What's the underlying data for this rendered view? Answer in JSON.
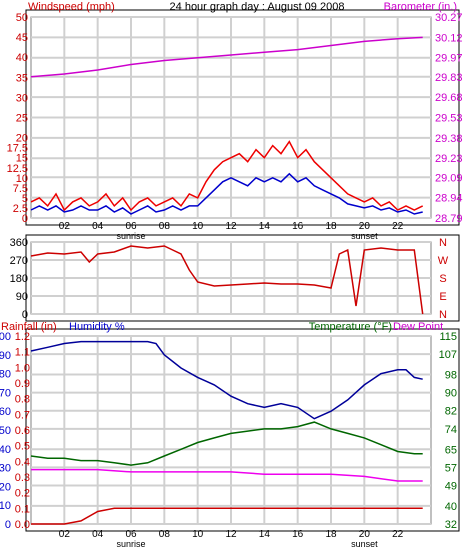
{
  "chart_data": [
    {
      "type": "line",
      "title": "24 hour graph day : August 09 2008",
      "left_axis": {
        "label": "Windspeed (mph)",
        "ticks": [
          "0",
          "2.5",
          "5",
          "7.5",
          "10",
          "12.5",
          "15",
          "17.5",
          "20",
          "25",
          "30",
          "35",
          "40",
          "45",
          "50"
        ],
        "ylim": [
          0,
          50
        ],
        "color": "#cc0000"
      },
      "right_axis": {
        "label": "Barometer (in.)",
        "ticks": [
          "28.79",
          "28.94",
          "29.09",
          "29.23",
          "29.38",
          "29.53",
          "29.68",
          "29.83",
          "29.97",
          "30.12",
          "30.27"
        ],
        "ylim": [
          28.79,
          30.27
        ],
        "color": "#cc00cc"
      },
      "x_ticks": [
        "02",
        "04",
        "06",
        "08",
        "10",
        "12",
        "14",
        "16",
        "18",
        "20",
        "22"
      ],
      "x_annotations": [
        "sunrise",
        "sunset"
      ],
      "xlim": [
        0,
        24
      ],
      "series": [
        {
          "role": "gust",
          "color": "#ee0000",
          "x": [
            0,
            0.5,
            1,
            1.5,
            2,
            2.5,
            3,
            3.5,
            4,
            4.5,
            5,
            5.5,
            6,
            6.5,
            7,
            7.5,
            8,
            8.5,
            9,
            9.5,
            10,
            10.5,
            11,
            11.5,
            12,
            12.5,
            13,
            13.5,
            14,
            14.5,
            15,
            15.5,
            16,
            16.5,
            17,
            17.5,
            18,
            18.5,
            19,
            19.5,
            20,
            20.5,
            21,
            21.5,
            22,
            22.5,
            23,
            23.5
          ],
          "y": [
            4,
            5,
            3,
            6,
            2,
            4,
            5,
            3,
            4,
            6,
            3,
            5,
            2,
            4,
            5,
            3,
            4,
            5,
            3,
            6,
            5,
            9,
            12,
            14,
            15,
            16,
            14,
            17,
            15,
            18,
            16,
            19,
            15,
            17,
            14,
            12,
            10,
            8,
            6,
            5,
            4,
            5,
            3,
            4,
            2,
            3,
            2,
            3
          ]
        },
        {
          "role": "average",
          "color": "#0000cc",
          "x": [
            0,
            0.5,
            1,
            1.5,
            2,
            2.5,
            3,
            3.5,
            4,
            4.5,
            5,
            5.5,
            6,
            6.5,
            7,
            7.5,
            8,
            8.5,
            9,
            9.5,
            10,
            10.5,
            11,
            11.5,
            12,
            12.5,
            13,
            13.5,
            14,
            14.5,
            15,
            15.5,
            16,
            16.5,
            17,
            17.5,
            18,
            18.5,
            19,
            19.5,
            20,
            20.5,
            21,
            21.5,
            22,
            22.5,
            23,
            23.5
          ],
          "y": [
            2,
            3,
            2,
            3,
            1.5,
            2,
            3,
            2,
            2,
            3,
            1.5,
            2.5,
            1,
            2,
            3,
            1.5,
            2,
            3,
            2,
            3,
            3,
            5,
            7,
            9,
            10,
            9,
            8,
            10,
            9,
            10,
            9,
            11,
            9,
            10,
            8,
            7,
            6,
            5,
            3.5,
            3,
            2.5,
            3,
            2,
            2.5,
            1.5,
            2,
            1,
            1.5
          ]
        },
        {
          "role": "barometer",
          "color": "#cc00cc",
          "x": [
            0,
            2,
            4,
            6,
            8,
            10,
            12,
            14,
            16,
            18,
            20,
            22,
            23.5
          ],
          "y": [
            29.83,
            29.85,
            29.88,
            29.92,
            29.95,
            29.97,
            29.99,
            30.01,
            30.03,
            30.06,
            30.09,
            30.11,
            30.12
          ]
        }
      ]
    },
    {
      "type": "line",
      "left_axis": {
        "ticks": [
          "0",
          "90",
          "180",
          "270",
          "360"
        ],
        "ylim": [
          0,
          360
        ]
      },
      "right_axis": {
        "ticks": [
          "N",
          "W",
          "S",
          "E",
          "N"
        ]
      },
      "x_ticks": [
        "02",
        "04",
        "06",
        "08",
        "10",
        "12",
        "14",
        "16",
        "18",
        "20",
        "22"
      ],
      "xlim": [
        0,
        24
      ],
      "series": [
        {
          "role": "wind direction",
          "color": "#cc0000",
          "x": [
            0,
            1,
            2,
            3,
            3.5,
            4,
            5,
            6,
            7,
            8,
            8.5,
            9,
            9.5,
            10,
            11,
            12,
            13,
            14,
            15,
            16,
            17,
            18,
            18.5,
            19,
            19.5,
            20,
            21,
            22,
            23,
            23.5
          ],
          "y": [
            290,
            305,
            300,
            310,
            260,
            300,
            310,
            340,
            330,
            340,
            320,
            300,
            220,
            160,
            140,
            145,
            150,
            155,
            150,
            150,
            145,
            130,
            300,
            320,
            40,
            320,
            330,
            320,
            320,
            0
          ]
        }
      ]
    },
    {
      "type": "line",
      "left_axis_1": {
        "label": "Rainfall (in)",
        "ticks": [
          "0.0",
          "0.1",
          "0.2",
          "0.3",
          "0.4",
          "0.5",
          "0.6",
          "0.7",
          "0.8",
          "0.9",
          "1.0",
          "1.1",
          "1.2"
        ],
        "ylim": [
          0,
          1.2
        ],
        "color": "#cc0000"
      },
      "left_axis_2": {
        "label": "Humidity %",
        "ticks": [
          "0",
          "10",
          "20",
          "30",
          "40",
          "50",
          "60",
          "70",
          "80",
          "90",
          "100"
        ],
        "ylim": [
          0,
          100
        ],
        "color": "#0000cc"
      },
      "right_axis_label_1": {
        "text": "Temperature (°F)",
        "color": "#006600"
      },
      "right_axis_label_2": {
        "text": "Dew Point",
        "color": "#cc00cc"
      },
      "right_axis": {
        "ticks": [
          "32",
          "40",
          "49",
          "57",
          "65",
          "74",
          "82",
          "90",
          "98",
          "107",
          "115"
        ],
        "ylim": [
          32,
          115
        ],
        "color": "#006600"
      },
      "x_ticks": [
        "02",
        "04",
        "06",
        "08",
        "10",
        "12",
        "14",
        "16",
        "18",
        "20",
        "22"
      ],
      "x_annotations": [
        "sunrise",
        "sunset"
      ],
      "xlim": [
        0,
        24
      ],
      "series": [
        {
          "role": "humidity",
          "color": "#000099",
          "axis": "humidity",
          "x": [
            0,
            1,
            2,
            3,
            4,
            5,
            6,
            7,
            7.5,
            8,
            9,
            10,
            11,
            12,
            13,
            14,
            15,
            16,
            17,
            18,
            19,
            20,
            21,
            22,
            22.5,
            23,
            23.5
          ],
          "y": [
            92,
            94,
            96,
            97,
            97,
            97,
            97,
            97,
            96,
            90,
            83,
            78,
            74,
            68,
            64,
            62,
            64,
            62,
            56,
            60,
            66,
            74,
            80,
            82,
            82,
            78,
            77
          ]
        },
        {
          "role": "temperature",
          "color": "#006600",
          "axis": "temperature",
          "x": [
            0,
            1,
            2,
            3,
            4,
            5,
            6,
            7,
            8,
            9,
            10,
            11,
            12,
            13,
            14,
            15,
            16,
            17,
            18,
            19,
            20,
            21,
            22,
            23,
            23.5
          ],
          "y": [
            62,
            61,
            61,
            60,
            60,
            59,
            58,
            59,
            62,
            65,
            68,
            70,
            72,
            73,
            74,
            74,
            75,
            77,
            74,
            72,
            70,
            67,
            64,
            63,
            63
          ]
        },
        {
          "role": "dew point",
          "color": "#ee00ee",
          "axis": "temperature",
          "x": [
            0,
            2,
            4,
            6,
            8,
            10,
            12,
            14,
            16,
            18,
            20,
            22,
            23.5
          ],
          "y": [
            56,
            56,
            56,
            55,
            55,
            55,
            55,
            54,
            54,
            54,
            53,
            51,
            51
          ]
        },
        {
          "role": "rainfall",
          "color": "#cc0000",
          "axis": "rain",
          "x": [
            0,
            2,
            3,
            4,
            5,
            6,
            23.5
          ],
          "y": [
            0,
            0,
            0.02,
            0.08,
            0.1,
            0.1,
            0.1
          ]
        }
      ]
    }
  ]
}
